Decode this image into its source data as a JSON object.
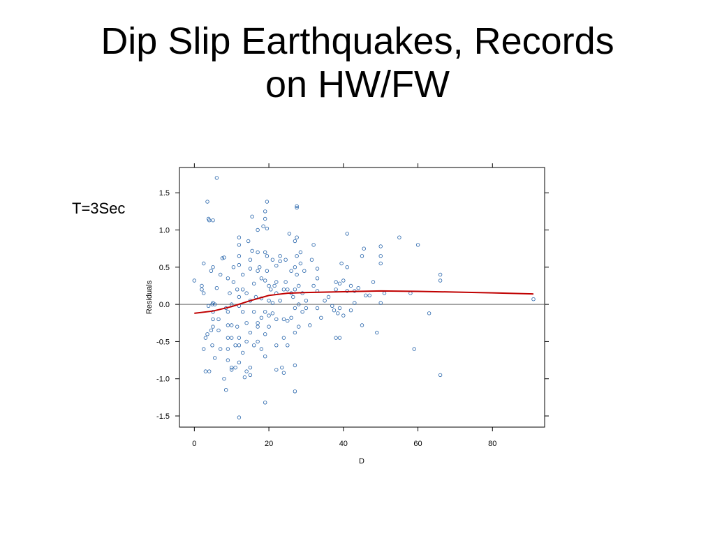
{
  "slide": {
    "title_line1": "Dip Slip Earthquakes, Records",
    "title_line2": "on HW/FW",
    "side_label": "T=3Sec"
  },
  "chart_data": {
    "type": "scatter",
    "title": "",
    "xlabel": "D",
    "ylabel": "Residuals",
    "xlim": [
      -4,
      94
    ],
    "ylim": [
      -1.65,
      1.84
    ],
    "xticks": [
      0,
      20,
      40,
      60,
      80
    ],
    "xtick_labels": [
      "0",
      "20",
      "40",
      "60",
      "80"
    ],
    "yticks": [
      -1.5,
      -1.0,
      -0.5,
      0.0,
      0.5,
      1.0,
      1.5
    ],
    "ytick_labels": [
      "-1.5",
      "-1.0",
      "-0.5",
      "0.0",
      "0.5",
      "1.0",
      "1.5"
    ],
    "reference_line_y": 0.0,
    "grid": false,
    "colors": {
      "points": "#1f5fa8",
      "smooth": "#c00000",
      "reference": "#808080"
    },
    "points": [
      [
        0,
        0.32
      ],
      [
        2,
        0.25
      ],
      [
        2,
        0.2
      ],
      [
        2.5,
        0.15
      ],
      [
        2.5,
        0.55
      ],
      [
        2.5,
        -0.6
      ],
      [
        3,
        -0.45
      ],
      [
        3,
        -0.9
      ],
      [
        3.5,
        -0.4
      ],
      [
        3.5,
        1.38
      ],
      [
        3.8,
        -0.02
      ],
      [
        3.8,
        1.15
      ],
      [
        4,
        -0.9
      ],
      [
        4,
        1.13
      ],
      [
        4.5,
        0.45
      ],
      [
        4.5,
        -0.35
      ],
      [
        4.8,
        0.0
      ],
      [
        4.8,
        -0.55
      ],
      [
        5,
        0.02
      ],
      [
        5,
        -0.3
      ],
      [
        5,
        0.5
      ],
      [
        5,
        -0.1
      ],
      [
        5,
        -0.2
      ],
      [
        5.5,
        -0.72
      ],
      [
        5.5,
        0.0
      ],
      [
        5,
        1.13
      ],
      [
        6,
        1.7
      ],
      [
        6,
        0.22
      ],
      [
        6.5,
        -0.35
      ],
      [
        6.5,
        -0.2
      ],
      [
        7,
        0.4
      ],
      [
        7,
        -0.6
      ],
      [
        7.5,
        0.62
      ],
      [
        8,
        0.63
      ],
      [
        8,
        -1.0
      ],
      [
        8.5,
        -1.15
      ],
      [
        8.5,
        -0.05
      ],
      [
        9,
        0.35
      ],
      [
        9,
        -0.1
      ],
      [
        9,
        -0.28
      ],
      [
        9,
        -0.45
      ],
      [
        9,
        -0.6
      ],
      [
        9,
        -0.75
      ],
      [
        9.5,
        0.15
      ],
      [
        10,
        -0.85
      ],
      [
        10,
        -0.88
      ],
      [
        10,
        -0.28
      ],
      [
        10,
        -0.45
      ],
      [
        10,
        0.0
      ],
      [
        10.5,
        0.5
      ],
      [
        10.5,
        0.3
      ],
      [
        11,
        -0.55
      ],
      [
        11,
        -0.85
      ],
      [
        11.5,
        -0.3
      ],
      [
        11.5,
        0.2
      ],
      [
        12,
        0.9
      ],
      [
        12,
        0.8
      ],
      [
        12,
        0.65
      ],
      [
        12,
        0.53
      ],
      [
        12,
        0.1
      ],
      [
        12,
        -0.02
      ],
      [
        12,
        -0.45
      ],
      [
        12,
        -0.55
      ],
      [
        12,
        -0.78
      ],
      [
        12,
        -1.52
      ],
      [
        13,
        -0.65
      ],
      [
        13,
        -0.1
      ],
      [
        13,
        0.4
      ],
      [
        13,
        0.2
      ],
      [
        13.5,
        -0.98
      ],
      [
        14,
        -0.5
      ],
      [
        14,
        -0.25
      ],
      [
        14,
        0.15
      ],
      [
        14,
        -0.9
      ],
      [
        14.5,
        0.85
      ],
      [
        15,
        0.6
      ],
      [
        15,
        0.48
      ],
      [
        15,
        0.05
      ],
      [
        15,
        -0.38
      ],
      [
        15,
        -0.85
      ],
      [
        15,
        -0.95
      ],
      [
        15.5,
        1.18
      ],
      [
        15.5,
        0.72
      ],
      [
        16,
        0.28
      ],
      [
        16,
        -0.1
      ],
      [
        16,
        -0.55
      ],
      [
        16.5,
        0.1
      ],
      [
        17,
        1.0
      ],
      [
        17,
        0.7
      ],
      [
        17,
        0.45
      ],
      [
        17,
        -0.25
      ],
      [
        17,
        -0.3
      ],
      [
        17,
        -0.5
      ],
      [
        17.5,
        0.5
      ],
      [
        18,
        0.35
      ],
      [
        18,
        0.08
      ],
      [
        18,
        -0.18
      ],
      [
        18,
        -0.6
      ],
      [
        18.5,
        1.05
      ],
      [
        19,
        1.25
      ],
      [
        19,
        1.15
      ],
      [
        19,
        0.7
      ],
      [
        19,
        0.32
      ],
      [
        19,
        -0.1
      ],
      [
        19,
        -0.4
      ],
      [
        19,
        -0.7
      ],
      [
        19,
        -1.32
      ],
      [
        19.5,
        1.38
      ],
      [
        19.5,
        1.02
      ],
      [
        19.5,
        0.65
      ],
      [
        19.5,
        0.45
      ],
      [
        20,
        0.25
      ],
      [
        20,
        0.05
      ],
      [
        20,
        -0.15
      ],
      [
        20,
        -0.3
      ],
      [
        20.5,
        0.2
      ],
      [
        21,
        0.6
      ],
      [
        21,
        0.02
      ],
      [
        21,
        -0.12
      ],
      [
        21.5,
        0.25
      ],
      [
        22,
        0.52
      ],
      [
        22,
        0.3
      ],
      [
        22,
        0.15
      ],
      [
        22,
        -0.2
      ],
      [
        22,
        -0.55
      ],
      [
        22,
        -0.88
      ],
      [
        23,
        0.65
      ],
      [
        23,
        0.58
      ],
      [
        23,
        0.05
      ],
      [
        23.5,
        -0.85
      ],
      [
        24,
        0.2
      ],
      [
        24,
        -0.2
      ],
      [
        24,
        -0.45
      ],
      [
        24,
        -0.92
      ],
      [
        24.5,
        0.6
      ],
      [
        24.5,
        0.3
      ],
      [
        25,
        0.2
      ],
      [
        25,
        -0.22
      ],
      [
        25,
        -0.55
      ],
      [
        25.5,
        0.95
      ],
      [
        26,
        0.45
      ],
      [
        26,
        0.15
      ],
      [
        26,
        -0.18
      ],
      [
        26.5,
        0.1
      ],
      [
        27,
        0.85
      ],
      [
        27,
        0.5
      ],
      [
        27,
        0.2
      ],
      [
        27,
        -0.05
      ],
      [
        27,
        -0.38
      ],
      [
        27,
        -0.82
      ],
      [
        27,
        -1.17
      ],
      [
        27.5,
        1.32
      ],
      [
        27.5,
        1.3
      ],
      [
        27.5,
        0.9
      ],
      [
        27.5,
        0.65
      ],
      [
        27.5,
        0.4
      ],
      [
        28,
        0.25
      ],
      [
        28,
        0.0
      ],
      [
        28,
        -0.3
      ],
      [
        28.5,
        0.7
      ],
      [
        28.5,
        0.55
      ],
      [
        29,
        0.15
      ],
      [
        29,
        -0.1
      ],
      [
        29.5,
        0.45
      ],
      [
        30,
        0.05
      ],
      [
        30,
        -0.05
      ],
      [
        31,
        -0.28
      ],
      [
        31.5,
        0.6
      ],
      [
        32,
        0.8
      ],
      [
        32,
        0.25
      ],
      [
        33,
        0.48
      ],
      [
        33,
        0.35
      ],
      [
        33,
        0.18
      ],
      [
        33,
        -0.05
      ],
      [
        34,
        -0.18
      ],
      [
        35,
        0.05
      ],
      [
        36,
        0.1
      ],
      [
        37,
        -0.02
      ],
      [
        37.5,
        -0.08
      ],
      [
        38,
        0.3
      ],
      [
        38,
        0.2
      ],
      [
        38,
        -0.45
      ],
      [
        38.5,
        -0.12
      ],
      [
        39,
        0.28
      ],
      [
        39,
        -0.05
      ],
      [
        39,
        -0.45
      ],
      [
        39.5,
        0.55
      ],
      [
        40,
        0.32
      ],
      [
        40,
        -0.15
      ],
      [
        41,
        0.5
      ],
      [
        41,
        0.95
      ],
      [
        41,
        0.18
      ],
      [
        42,
        0.25
      ],
      [
        42,
        -0.08
      ],
      [
        43,
        0.02
      ],
      [
        43,
        0.18
      ],
      [
        44,
        0.22
      ],
      [
        45,
        -0.28
      ],
      [
        45.5,
        0.75
      ],
      [
        45,
        0.65
      ],
      [
        46,
        0.12
      ],
      [
        47,
        0.12
      ],
      [
        48,
        0.3
      ],
      [
        49,
        -0.38
      ],
      [
        50,
        0.55
      ],
      [
        50,
        0.78
      ],
      [
        50,
        0.65
      ],
      [
        50,
        0.02
      ],
      [
        51,
        0.15
      ],
      [
        55,
        0.9
      ],
      [
        58,
        0.15
      ],
      [
        59,
        -0.6
      ],
      [
        60,
        0.8
      ],
      [
        63,
        -0.12
      ],
      [
        66,
        0.4
      ],
      [
        66,
        0.32
      ],
      [
        66,
        -0.95
      ],
      [
        91,
        0.07
      ]
    ],
    "smooth_curve": [
      [
        0,
        -0.12
      ],
      [
        5,
        -0.09
      ],
      [
        10,
        -0.03
      ],
      [
        15,
        0.05
      ],
      [
        20,
        0.12
      ],
      [
        25,
        0.15
      ],
      [
        30,
        0.16
      ],
      [
        40,
        0.17
      ],
      [
        50,
        0.18
      ],
      [
        60,
        0.175
      ],
      [
        70,
        0.165
      ],
      [
        80,
        0.155
      ],
      [
        91,
        0.14
      ]
    ]
  }
}
